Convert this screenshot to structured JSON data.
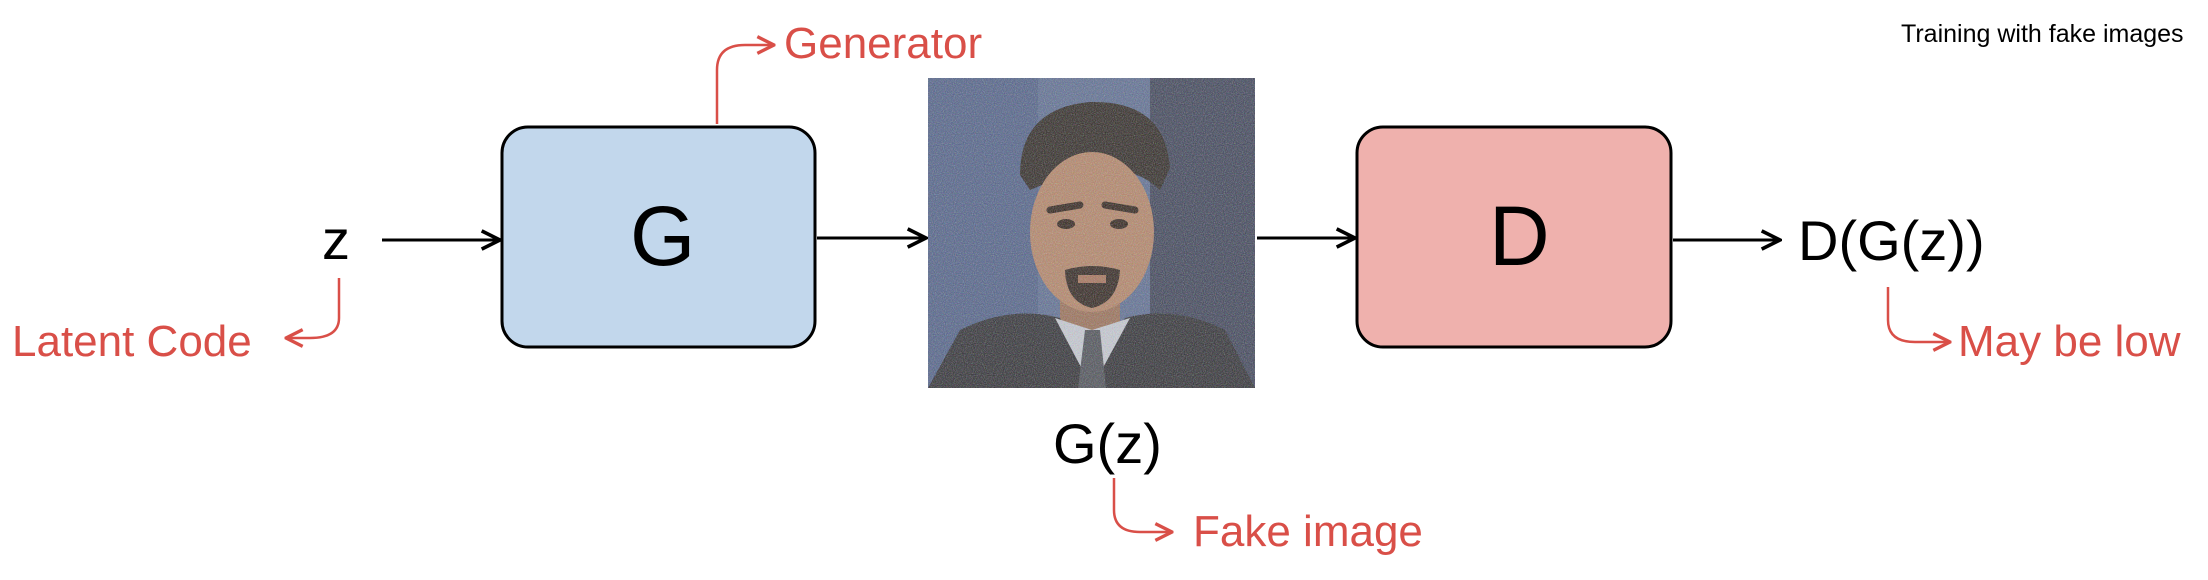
{
  "header": {
    "title": "Training with fake images"
  },
  "colors": {
    "generator_fill": "#c2d7ec",
    "discriminator_fill": "#efb1ad",
    "annotation": "#d94f48",
    "stroke": "#000000"
  },
  "nodes": {
    "latent": {
      "label": "z"
    },
    "generator": {
      "label": "G"
    },
    "fake_image": {
      "label": "G(z)",
      "icon": "fake-face-photo"
    },
    "discriminator": {
      "label": "D"
    },
    "output": {
      "label": "D(G(z))"
    }
  },
  "annotations": {
    "latent_code": "Latent Code",
    "generator": "Generator",
    "fake_image": "Fake image",
    "output": "May be low"
  }
}
